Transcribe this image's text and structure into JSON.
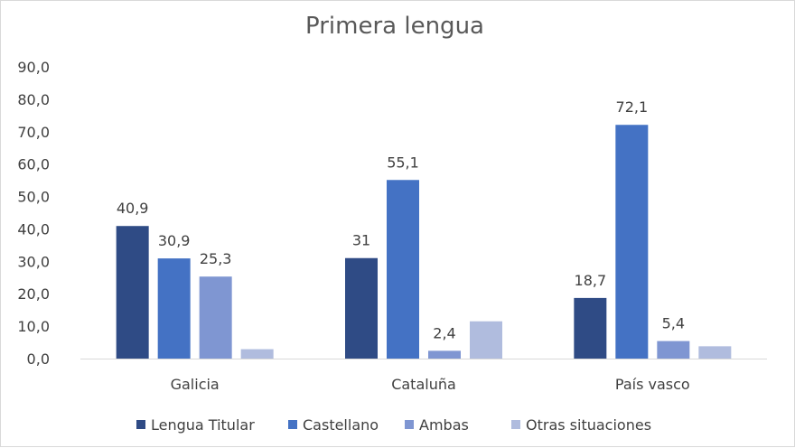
{
  "chart_data": {
    "type": "bar",
    "title": "Primera lengua",
    "categories": [
      "Galicia",
      "Cataluña",
      "País vasco"
    ],
    "ylim": [
      0,
      90
    ],
    "yticks": [
      "0,0",
      "10,0",
      "20,0",
      "30,0",
      "40,0",
      "50,0",
      "60,0",
      "70,0",
      "80,0",
      "90,0"
    ],
    "grid": false,
    "legend_position": "bottom",
    "series": [
      {
        "name": "Lengua Titular",
        "color": "#2f4b85",
        "values": [
          40.9,
          31,
          18.7
        ],
        "labels": [
          "40,9",
          "31",
          "18,7"
        ]
      },
      {
        "name": "Castellano",
        "color": "#4472c4",
        "values": [
          30.9,
          55.1,
          72.1
        ],
        "labels": [
          "30,9",
          "55,1",
          "72,1"
        ]
      },
      {
        "name": "Ambas",
        "color": "#7f96d2",
        "values": [
          25.3,
          2.4,
          5.4
        ],
        "labels": [
          "25,3",
          "2,4",
          "5,4"
        ]
      },
      {
        "name": "Otras situaciones",
        "color": "#b0bcde",
        "values": [
          2.9,
          11.5,
          3.8
        ],
        "labels": [
          "",
          "",
          ""
        ]
      }
    ]
  }
}
